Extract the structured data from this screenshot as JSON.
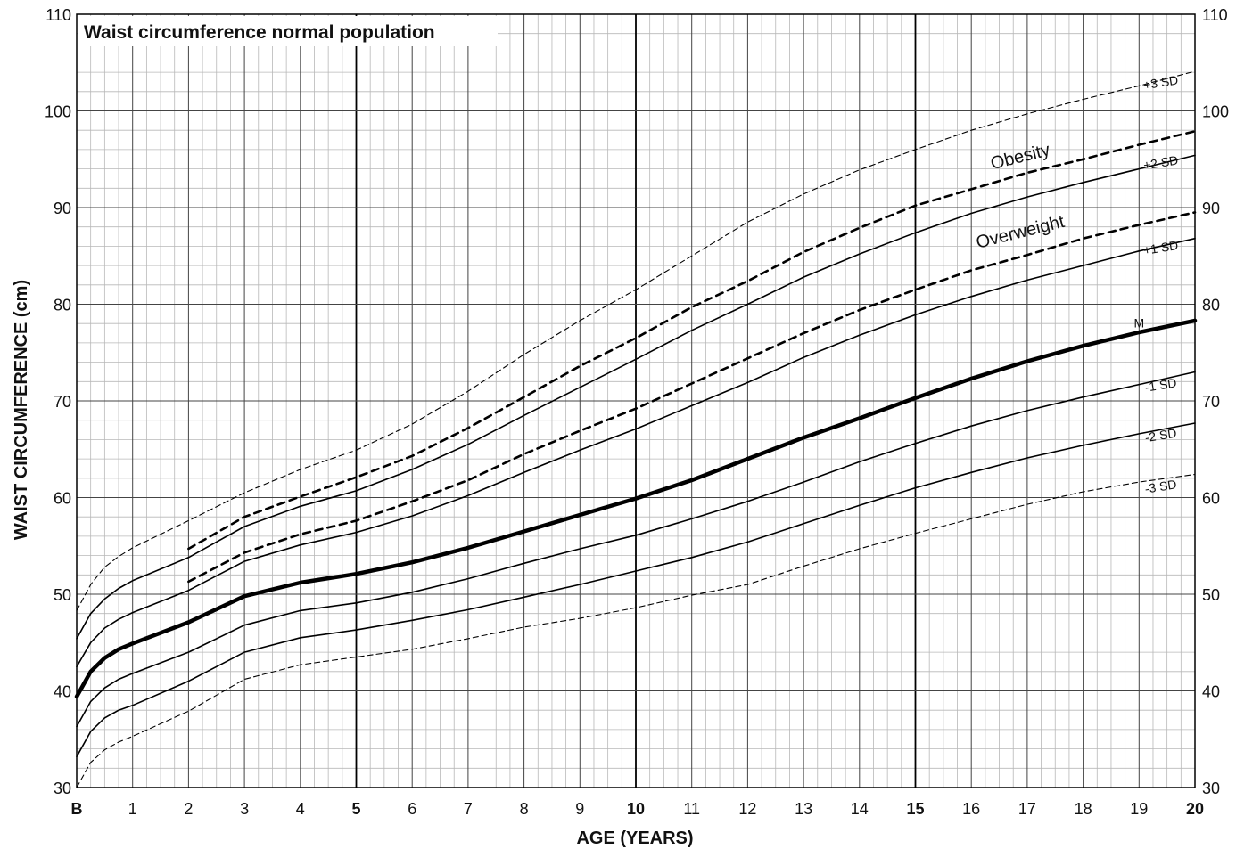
{
  "chart_data": {
    "type": "line",
    "title": "Waist circumference normal population",
    "xlabel": "AGE (YEARS)",
    "ylabel": "WAIST CIRCUMFERENCE (cm)",
    "xlim": [
      0,
      20
    ],
    "ylim": [
      30,
      110
    ],
    "x_tick_labels": [
      {
        "x": 0,
        "label": "B",
        "bold": true
      },
      {
        "x": 1,
        "label": "1"
      },
      {
        "x": 2,
        "label": "2"
      },
      {
        "x": 3,
        "label": "3"
      },
      {
        "x": 4,
        "label": "4"
      },
      {
        "x": 5,
        "label": "5",
        "bold": true
      },
      {
        "x": 6,
        "label": "6"
      },
      {
        "x": 7,
        "label": "7"
      },
      {
        "x": 8,
        "label": "8"
      },
      {
        "x": 9,
        "label": "9"
      },
      {
        "x": 10,
        "label": "10",
        "bold": true
      },
      {
        "x": 11,
        "label": "11"
      },
      {
        "x": 12,
        "label": "12"
      },
      {
        "x": 13,
        "label": "13"
      },
      {
        "x": 14,
        "label": "14"
      },
      {
        "x": 15,
        "label": "15",
        "bold": true
      },
      {
        "x": 16,
        "label": "16"
      },
      {
        "x": 17,
        "label": "17"
      },
      {
        "x": 18,
        "label": "18"
      },
      {
        "x": 19,
        "label": "19"
      },
      {
        "x": 20,
        "label": "20",
        "bold": true
      }
    ],
    "y_ticks": [
      30,
      40,
      50,
      60,
      70,
      80,
      90,
      100,
      110
    ],
    "grid": true,
    "series": [
      {
        "name": "+3 SD",
        "style": "thin-dashed",
        "x": [
          0,
          0.25,
          0.5,
          0.75,
          1,
          2,
          3,
          4,
          5,
          6,
          7,
          8,
          9,
          10,
          11,
          12,
          13,
          14,
          15,
          16,
          17,
          18,
          19,
          20
        ],
        "y": [
          48.3,
          51.0,
          52.8,
          53.9,
          54.8,
          57.6,
          60.5,
          62.9,
          64.9,
          67.6,
          71.0,
          74.8,
          78.3,
          81.5,
          85.0,
          88.5,
          91.4,
          93.9,
          96.0,
          98.0,
          99.7,
          101.2,
          102.6,
          104.1
        ]
      },
      {
        "name": "Obesity",
        "style": "dashed",
        "x": [
          2,
          3,
          4,
          5,
          6,
          7,
          8,
          9,
          10,
          11,
          12,
          13,
          14,
          15,
          16,
          17,
          18,
          19,
          20
        ],
        "y": [
          54.7,
          58.0,
          60.1,
          62.1,
          64.3,
          67.2,
          70.4,
          73.6,
          76.5,
          79.7,
          82.4,
          85.4,
          87.9,
          90.2,
          91.9,
          93.6,
          95.0,
          96.5,
          97.9
        ]
      },
      {
        "name": "+2 SD",
        "style": "solid",
        "x": [
          0,
          0.25,
          0.5,
          0.75,
          1,
          2,
          3,
          4,
          5,
          6,
          7,
          8,
          9,
          10,
          11,
          12,
          13,
          14,
          15,
          16,
          17,
          18,
          19,
          20
        ],
        "y": [
          45.4,
          48.0,
          49.5,
          50.6,
          51.4,
          53.8,
          57.0,
          59.1,
          60.7,
          62.9,
          65.5,
          68.5,
          71.4,
          74.3,
          77.3,
          80.0,
          82.8,
          85.2,
          87.4,
          89.4,
          91.1,
          92.6,
          94.0,
          95.4
        ]
      },
      {
        "name": "Overweight",
        "style": "dashed",
        "x": [
          2,
          3,
          4,
          5,
          6,
          7,
          8,
          9,
          10,
          11,
          12,
          13,
          14,
          15,
          16,
          17,
          18,
          19,
          20
        ],
        "y": [
          51.3,
          54.3,
          56.2,
          57.6,
          59.6,
          61.8,
          64.5,
          66.9,
          69.2,
          71.8,
          74.4,
          77.0,
          79.4,
          81.5,
          83.5,
          85.1,
          86.8,
          88.2,
          89.5
        ]
      },
      {
        "name": "+1 SD",
        "style": "solid",
        "x": [
          0,
          0.25,
          0.5,
          0.75,
          1,
          2,
          3,
          4,
          5,
          6,
          7,
          8,
          9,
          10,
          11,
          12,
          13,
          14,
          15,
          16,
          17,
          18,
          19,
          20
        ],
        "y": [
          42.5,
          45.0,
          46.5,
          47.4,
          48.1,
          50.4,
          53.4,
          55.1,
          56.4,
          58.1,
          60.2,
          62.6,
          64.9,
          67.1,
          69.5,
          71.9,
          74.5,
          76.8,
          78.9,
          80.8,
          82.5,
          84.0,
          85.5,
          86.8
        ]
      },
      {
        "name": "M",
        "style": "bold",
        "x": [
          0,
          0.25,
          0.5,
          0.75,
          1,
          2,
          3,
          4,
          5,
          6,
          7,
          8,
          9,
          10,
          11,
          12,
          13,
          14,
          15,
          16,
          17,
          18,
          19,
          20
        ],
        "y": [
          39.4,
          42.0,
          43.4,
          44.3,
          44.9,
          47.1,
          49.8,
          51.2,
          52.1,
          53.3,
          54.8,
          56.5,
          58.2,
          59.9,
          61.8,
          64.0,
          66.2,
          68.2,
          70.3,
          72.3,
          74.1,
          75.7,
          77.1,
          78.3
        ]
      },
      {
        "name": "-1 SD",
        "style": "solid",
        "x": [
          0,
          0.25,
          0.5,
          0.75,
          1,
          2,
          3,
          4,
          5,
          6,
          7,
          8,
          9,
          10,
          11,
          12,
          13,
          14,
          15,
          16,
          17,
          18,
          19,
          20
        ],
        "y": [
          36.3,
          38.9,
          40.3,
          41.2,
          41.8,
          44.0,
          46.8,
          48.3,
          49.1,
          50.2,
          51.6,
          53.2,
          54.7,
          56.1,
          57.8,
          59.6,
          61.6,
          63.7,
          65.6,
          67.4,
          69.0,
          70.4,
          71.7,
          73.0
        ]
      },
      {
        "name": "-2 SD",
        "style": "solid",
        "x": [
          0,
          0.25,
          0.5,
          0.75,
          1,
          2,
          3,
          4,
          5,
          6,
          7,
          8,
          9,
          10,
          11,
          12,
          13,
          14,
          15,
          16,
          17,
          18,
          19,
          20
        ],
        "y": [
          33.2,
          35.8,
          37.2,
          38.0,
          38.5,
          41.0,
          44.0,
          45.5,
          46.3,
          47.3,
          48.4,
          49.7,
          51.0,
          52.4,
          53.8,
          55.4,
          57.3,
          59.2,
          61.0,
          62.6,
          64.1,
          65.4,
          66.6,
          67.7
        ]
      },
      {
        "name": "-3 SD",
        "style": "thin-dashed",
        "x": [
          0,
          0.25,
          0.5,
          0.75,
          1,
          2,
          3,
          4,
          5,
          6,
          7,
          8,
          9,
          10,
          11,
          12,
          13,
          14,
          15,
          16,
          17,
          18,
          19,
          20
        ],
        "y": [
          30.0,
          32.6,
          33.9,
          34.7,
          35.3,
          37.9,
          41.2,
          42.7,
          43.5,
          44.3,
          45.4,
          46.6,
          47.5,
          48.6,
          49.9,
          51.0,
          52.9,
          54.7,
          56.3,
          57.8,
          59.3,
          60.6,
          61.6,
          62.4
        ]
      }
    ],
    "annotations": [
      {
        "text": "+3 SD",
        "x": 19.4,
        "y": 102.5,
        "size": "small"
      },
      {
        "text": "Obesity",
        "x": 16.9,
        "y": 94.7,
        "size": "large"
      },
      {
        "text": "+2 SD",
        "x": 19.4,
        "y": 94.2,
        "size": "small"
      },
      {
        "text": "Overweight",
        "x": 16.9,
        "y": 86.9,
        "size": "large"
      },
      {
        "text": "+1 SD",
        "x": 19.4,
        "y": 85.4,
        "size": "small"
      },
      {
        "text": "M",
        "x": 19.0,
        "y": 77.6,
        "size": "small"
      },
      {
        "text": "-1 SD",
        "x": 19.4,
        "y": 71.2,
        "size": "small"
      },
      {
        "text": "-2 SD",
        "x": 19.4,
        "y": 66.0,
        "size": "small"
      },
      {
        "text": "-3 SD",
        "x": 19.4,
        "y": 60.7,
        "size": "small"
      }
    ]
  }
}
